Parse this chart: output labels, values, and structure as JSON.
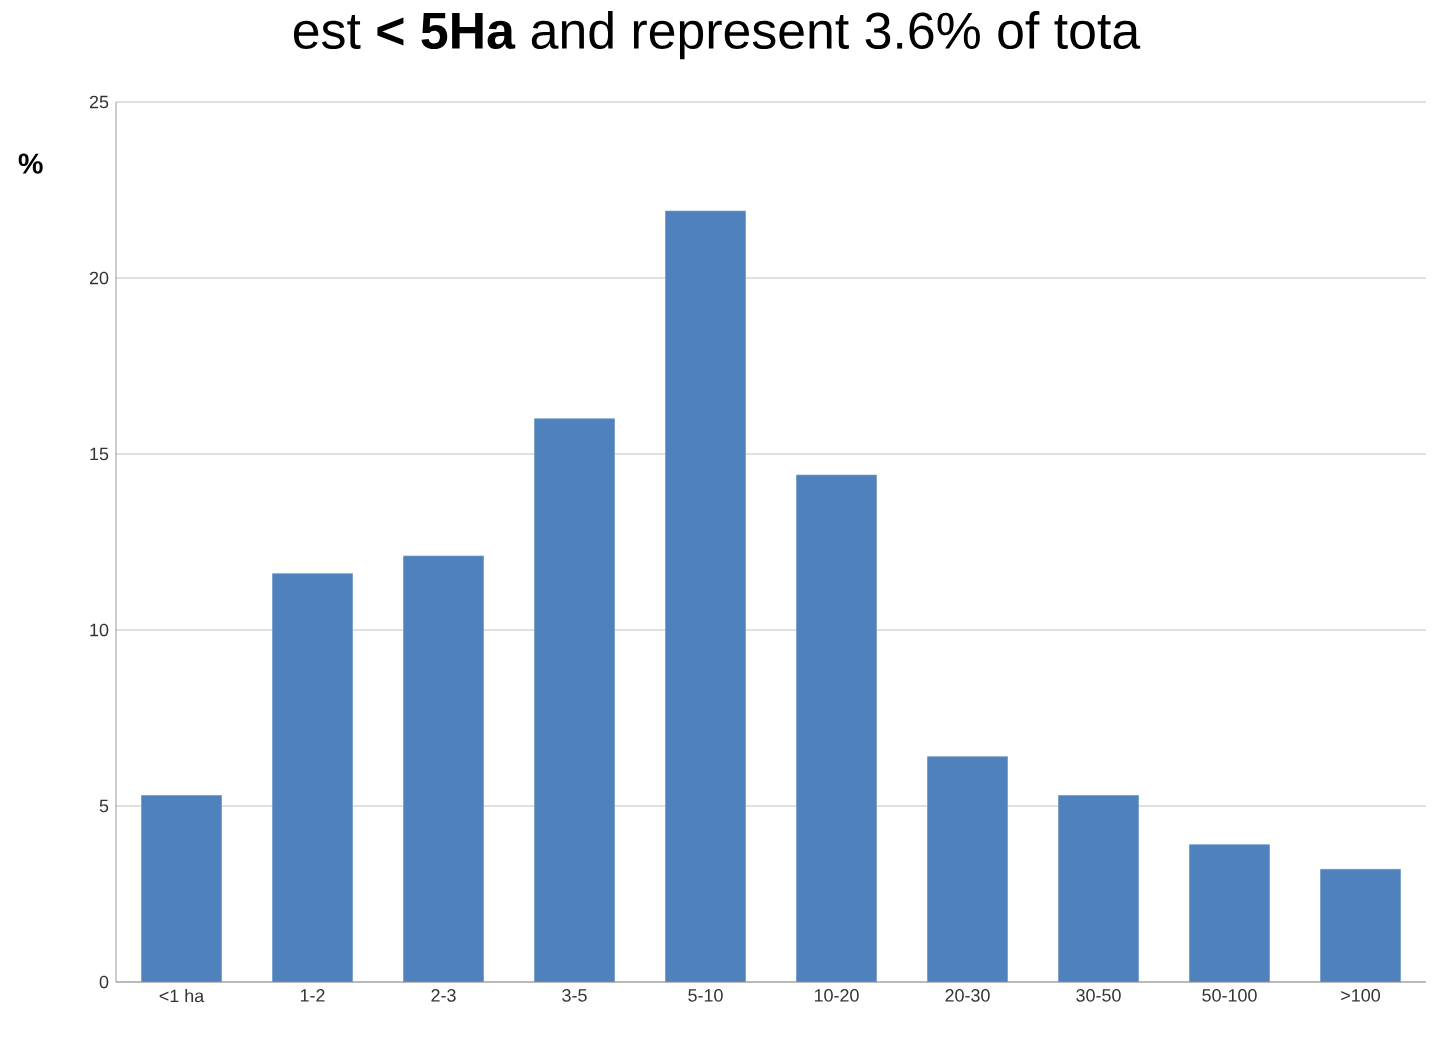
{
  "chart_data": {
    "type": "bar",
    "ylabel": "%",
    "categories": [
      "<1 ha",
      "1-2",
      "2-3",
      "3-5",
      "5-10",
      "10-20",
      "20-30",
      "30-50",
      "50-100",
      ">100"
    ],
    "values": [
      5.3,
      11.6,
      12.1,
      16.0,
      21.9,
      14.4,
      6.4,
      5.3,
      3.9,
      3.2
    ],
    "color": "#4f81bd",
    "ylim": [
      0,
      25
    ],
    "yticks": [
      0,
      5,
      10,
      15,
      20,
      25
    ],
    "grid": "y",
    "annotations": [
      "est **< 5Ha** and represent 3.6% of tota"
    ]
  }
}
